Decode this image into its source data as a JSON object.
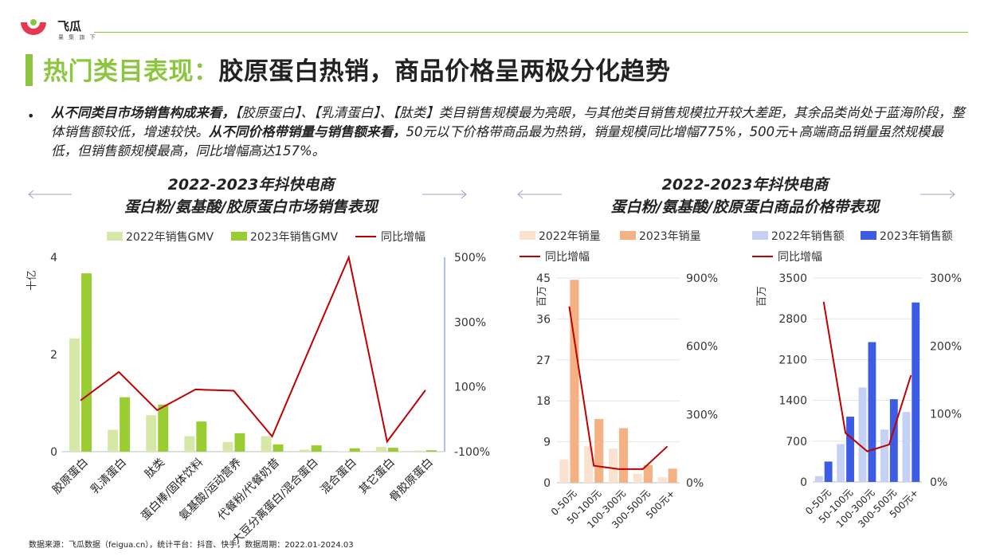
{
  "brand": {
    "name": "飞瓜",
    "tagline": "果 集 旗 下"
  },
  "title": {
    "highlight": "热门类目表现：",
    "rest": "胶原蛋白热销，商品价格呈两极分化趋势"
  },
  "summary": {
    "bold1": "从不同类目市场销售构成来看，",
    "text1": "【胶原蛋白】、【乳清蛋白】、【肽类】类目销售规模最为亮眼，与其他类目销售规模拉开较大差距，其余品类尚处于蓝海阶段，整体销售额较低，增速较快。",
    "bold2": "从不同价格带销量与销售额来看，",
    "text2": "50元以下价格带商品最为热销，销量规模同比增幅775%，500元+高端商品销量虽然规模最低，但销售额规模最高，同比增幅高达157%。"
  },
  "left_title": {
    "line1": "2022-2023年抖快电商",
    "line2": "蛋白粉/氨基酸/胶原蛋白市场销售表现"
  },
  "right_title": {
    "line1": "2022-2023年抖快电商",
    "line2": "蛋白粉/氨基酸/胶原蛋白商品价格带表现"
  },
  "source": "数据来源：飞瓜数据（feigua.cn），统计平台：抖音、快手，数据周期：2022.01-2024.03",
  "colors": {
    "accent": "#8cc63f",
    "line": "#c00000",
    "gmv2022": "#d6e8a8",
    "gmv2023": "#9acd32",
    "vol2022": "#fbe1cf",
    "vol2023": "#f4b183",
    "amt2022": "#c5d0f5",
    "amt2023": "#3c5ce6"
  },
  "chart_data": [
    {
      "type": "bar",
      "unit": "十亿",
      "categories": [
        "胶原蛋白",
        "乳清蛋白",
        "肽类",
        "蛋白棒/固体饮料",
        "氨基酸/运动营养",
        "代餐粉/代餐奶昔",
        "大豆分离蛋白/混合蛋白",
        "混合蛋白",
        "其它蛋白",
        "骨胶原蛋白"
      ],
      "legend": [
        "2022年销售GMV",
        "2023年销售GMV",
        "同比增幅"
      ],
      "series": [
        {
          "name": "2022年销售GMV",
          "values": [
            2.33,
            0.45,
            0.75,
            0.32,
            0.2,
            0.32,
            0.04,
            0.01,
            0.1,
            0.02
          ]
        },
        {
          "name": "2023年销售GMV",
          "values": [
            3.67,
            1.12,
            0.97,
            0.62,
            0.38,
            0.15,
            0.13,
            0.07,
            0.08,
            0.03
          ]
        },
        {
          "name": "同比增幅",
          "axis": "right",
          "values": [
            58,
            146,
            28,
            92,
            88,
            -53,
            225,
            500,
            -69,
            90
          ]
        }
      ],
      "y_ticks": [
        "0",
        "2",
        "4"
      ],
      "ylim": [
        0,
        4
      ],
      "y2_ticks": [
        "-100%",
        "100%",
        "300%",
        "500%"
      ],
      "y2lim": [
        -100,
        500
      ]
    },
    {
      "type": "bar",
      "unit": "百万",
      "categories": [
        "0-50元",
        "50-100元",
        "100-300元",
        "300-500元",
        "500元+"
      ],
      "legend": [
        "2022年销量",
        "2023年销量",
        "同比增幅"
      ],
      "series": [
        {
          "name": "2022年销量",
          "values": [
            5.1,
            8.0,
            7.5,
            2.0,
            1.2
          ]
        },
        {
          "name": "2023年销量",
          "values": [
            44.6,
            14.0,
            12.0,
            3.9,
            3.1
          ]
        },
        {
          "name": "同比增幅",
          "axis": "right",
          "values": [
            775,
            75,
            60,
            60,
            160
          ]
        }
      ],
      "y_ticks": [
        "0",
        "9",
        "18",
        "27",
        "36",
        "45"
      ],
      "ylim": [
        0,
        45
      ],
      "y2_ticks": [
        "0%",
        "300%",
        "600%",
        "900%"
      ],
      "y2lim": [
        0,
        900
      ]
    },
    {
      "type": "bar",
      "unit": "百万",
      "categories": [
        "0-50元",
        "50-100元",
        "100-300元",
        "300-500元",
        "500元+"
      ],
      "legend": [
        "2022年销售额",
        "2023年销售额",
        "同比增幅"
      ],
      "series": [
        {
          "name": "2022年销售额",
          "values": [
            100,
            650,
            1620,
            900,
            1200
          ]
        },
        {
          "name": "2023年销售额",
          "values": [
            350,
            1120,
            2400,
            1420,
            3080
          ]
        },
        {
          "name": "同比增幅",
          "axis": "right",
          "values": [
            265,
            72,
            45,
            55,
            157
          ]
        }
      ],
      "y_ticks": [
        "0",
        "700",
        "1400",
        "2100",
        "2800",
        "3500"
      ],
      "ylim": [
        0,
        3500
      ],
      "y2_ticks": [
        "0%",
        "100%",
        "200%",
        "300%"
      ],
      "y2lim": [
        0,
        300
      ]
    }
  ]
}
